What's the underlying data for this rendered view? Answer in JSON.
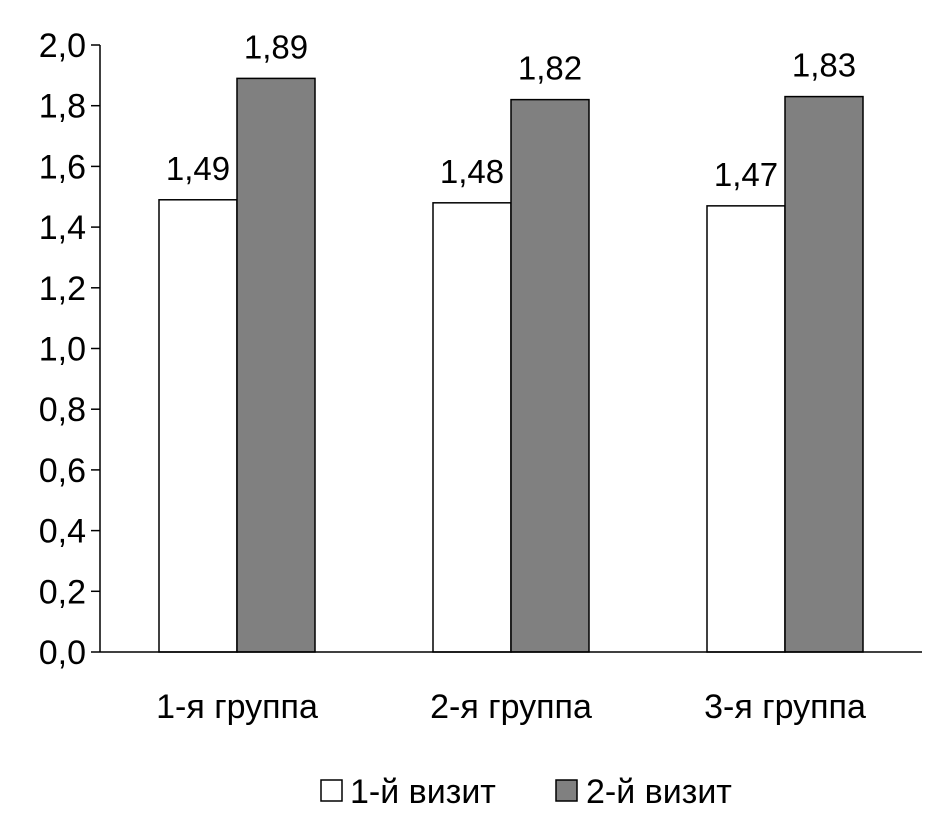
{
  "chart_data": {
    "type": "bar",
    "categories": [
      "1-я группа",
      "2-я группа",
      "3-я группа"
    ],
    "series": [
      {
        "name": "1-й визит",
        "values": [
          1.49,
          1.48,
          1.47
        ],
        "value_labels": [
          "1,49",
          "1,48",
          "1,47"
        ],
        "color": "#ffffff"
      },
      {
        "name": "2-й визит",
        "values": [
          1.89,
          1.82,
          1.83
        ],
        "value_labels": [
          "1,89",
          "1,82",
          "1,83"
        ],
        "color": "#808080"
      }
    ],
    "ylim": [
      0,
      2.0
    ],
    "yticks": [
      0,
      0.2,
      0.4,
      0.6,
      0.8,
      1.0,
      1.2,
      1.4,
      1.6,
      1.8,
      2.0
    ],
    "ytick_labels": [
      "0,0",
      "0,2",
      "0,4",
      "0,6",
      "0,8",
      "1,0",
      "1,2",
      "1,4",
      "1,6",
      "1,8",
      "2,0"
    ],
    "title": "",
    "xlabel": "",
    "ylabel": "",
    "grid": false,
    "legend_position": "bottom-center",
    "bar_outline_color": "#000000"
  }
}
